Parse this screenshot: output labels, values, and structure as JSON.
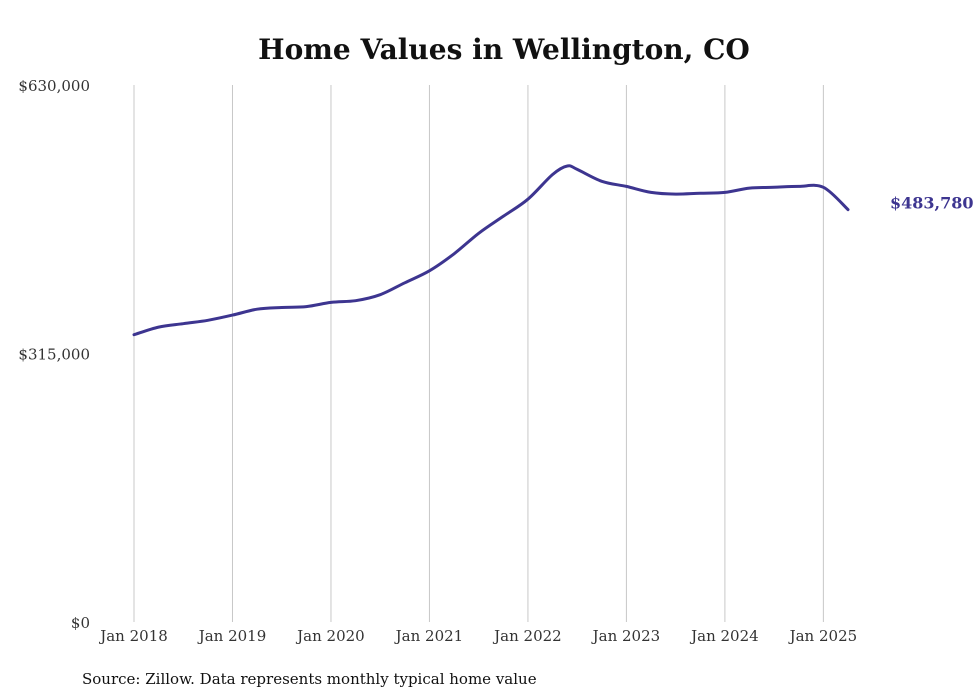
{
  "chart_data": {
    "type": "line",
    "title": "Home Values in Wellington, CO",
    "xlabel": "",
    "ylabel": "",
    "ylim": [
      0,
      630000
    ],
    "yticks": [
      {
        "value": 0,
        "label": "$0"
      },
      {
        "value": 315000,
        "label": "$315,000"
      },
      {
        "value": 630000,
        "label": "$630,000"
      }
    ],
    "xticks": [
      {
        "value": 2018,
        "label": "Jan 2018"
      },
      {
        "value": 2019,
        "label": "Jan 2019"
      },
      {
        "value": 2020,
        "label": "Jan 2020"
      },
      {
        "value": 2021,
        "label": "Jan 2021"
      },
      {
        "value": 2022,
        "label": "Jan 2022"
      },
      {
        "value": 2023,
        "label": "Jan 2023"
      },
      {
        "value": 2024,
        "label": "Jan 2024"
      },
      {
        "value": 2025,
        "label": "Jan 2025"
      }
    ],
    "xlim": [
      2018,
      2025.25
    ],
    "grid": "vertical",
    "series": [
      {
        "color": "#3d3590",
        "end_label": "$483,780",
        "x": [
          2018.0,
          2018.25,
          2018.5,
          2018.75,
          2019.0,
          2019.25,
          2019.5,
          2019.75,
          2020.0,
          2020.25,
          2020.5,
          2020.75,
          2021.0,
          2021.25,
          2021.5,
          2021.75,
          2022.0,
          2022.25,
          2022.4,
          2022.5,
          2022.75,
          2023.0,
          2023.25,
          2023.5,
          2023.75,
          2024.0,
          2024.25,
          2024.5,
          2024.75,
          2025.0,
          2025.25
        ],
        "y": [
          337000,
          346000,
          350000,
          354000,
          360000,
          367000,
          369000,
          370000,
          375000,
          377000,
          384000,
          398000,
          412000,
          432000,
          456000,
          476000,
          496000,
          525000,
          535000,
          531000,
          517000,
          511000,
          504000,
          502000,
          503000,
          504000,
          509000,
          510000,
          511000,
          510000,
          483780
        ]
      }
    ]
  },
  "source_note": "Source: Zillow. Data represents monthly typical home value"
}
